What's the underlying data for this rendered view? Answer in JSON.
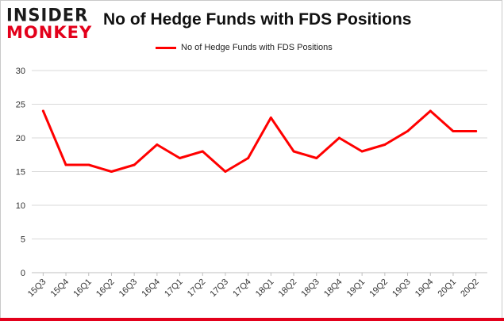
{
  "logo": {
    "line1": "INSIDER",
    "line2": "MONKEY"
  },
  "colors": {
    "series": "#ff0000",
    "brand_red": "#e3001b",
    "grid": "#d9d9d9"
  },
  "chart_data": {
    "type": "line",
    "title": "No of Hedge Funds with FDS Positions",
    "xlabel": "",
    "ylabel": "",
    "ylim": [
      0,
      30
    ],
    "yticks": [
      0,
      5,
      10,
      15,
      20,
      25,
      30
    ],
    "grid": true,
    "legend_position": "top-center",
    "categories": [
      "15Q3",
      "15Q4",
      "16Q1",
      "16Q2",
      "16Q3",
      "16Q4",
      "17Q1",
      "17Q2",
      "17Q3",
      "17Q4",
      "18Q1",
      "18Q2",
      "18Q3",
      "18Q4",
      "19Q1",
      "19Q2",
      "19Q3",
      "19Q4",
      "20Q1",
      "20Q2"
    ],
    "series": [
      {
        "name": "No of Hedge Funds with FDS Positions",
        "values": [
          24,
          16,
          16,
          15,
          16,
          19,
          17,
          18,
          15,
          17,
          23,
          18,
          17,
          20,
          18,
          19,
          21,
          24,
          21,
          21
        ]
      }
    ]
  }
}
